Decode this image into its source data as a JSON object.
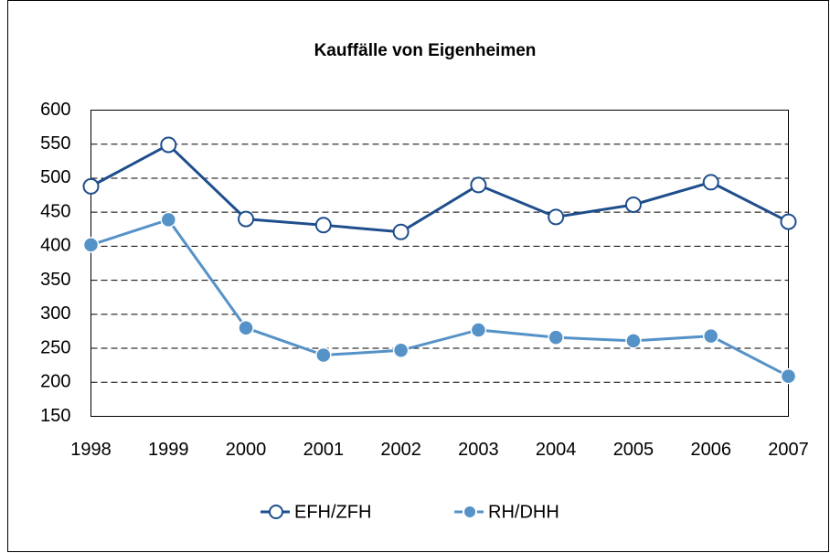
{
  "chart_data": {
    "type": "line",
    "title": "Kauffälle von Eigenheimen",
    "categories": [
      "1998",
      "1999",
      "2000",
      "2001",
      "2002",
      "2003",
      "2004",
      "2005",
      "2006",
      "2007"
    ],
    "series": [
      {
        "name": "EFH/ZFH",
        "color": "#1f4e8c",
        "marker": "open",
        "values": [
          488,
          549,
          440,
          431,
          421,
          490,
          443,
          461,
          494,
          436
        ]
      },
      {
        "name": "RH/DHH",
        "color": "#5592c8",
        "marker": "filled",
        "values": [
          402,
          439,
          280,
          240,
          247,
          277,
          266,
          261,
          268,
          209
        ]
      }
    ],
    "ylim": [
      150,
      600
    ],
    "yticks": [
      150,
      200,
      250,
      300,
      350,
      400,
      450,
      500,
      550,
      600
    ],
    "grid": true,
    "legend": "bottom"
  }
}
